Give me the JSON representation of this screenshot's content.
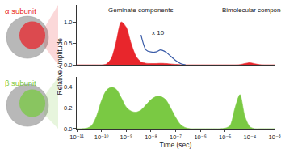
{
  "chart_data": [
    {
      "type": "area",
      "title": "α subunit",
      "log": "x",
      "tick_labels": "y",
      "ylabel": "Relative Amplitude",
      "x": [
        1e-11,
        1.585e-11,
        2.512e-11,
        3.981e-11,
        6.31e-11,
        1e-10,
        1.585e-10,
        2.512e-10,
        3.981e-10,
        6.31e-10,
        1e-09,
        1.585e-09,
        2.512e-09,
        3.981e-09,
        6.31e-09,
        1e-08,
        1.585e-08,
        2.512e-08,
        3.981e-08,
        6.31e-08,
        1e-07,
        1.585e-07,
        2.512e-07,
        3.981e-07,
        6.31e-07,
        1e-06,
        1.585e-06,
        2.512e-06,
        3.981e-06,
        6.31e-06,
        1e-05,
        1.585e-05,
        2.512e-05,
        3.981e-05,
        6.31e-05,
        0.0001,
        0.0001585,
        0.0002512,
        0.0003981,
        0.000631,
        0.001
      ],
      "xlim": [
        1e-11,
        0.001
      ],
      "ylim": [
        0,
        1.4
      ],
      "yticks": [
        {
          "value": 0,
          "label": "0.0"
        },
        {
          "value": 0.5,
          "label": "0.5"
        },
        {
          "value": 1,
          "label": "1.0"
        }
      ],
      "series": [
        {
          "color": "#e8262c",
          "values": [
            0,
            0,
            0,
            0,
            0,
            0,
            0.02,
            0.15,
            0.55,
            1.0,
            0.88,
            0.5,
            0.2,
            0.07,
            0.035,
            0.03,
            0.03,
            0.035,
            0.03,
            0.02,
            0.01,
            0.003,
            0,
            0,
            0,
            0,
            0,
            0,
            0,
            0,
            0,
            0,
            0,
            0.005,
            0.03,
            0.05,
            0.025,
            0.005,
            0,
            0,
            0
          ]
        },
        {
          "type": "line",
          "color": "#3a5ca8",
          "values": [
            null,
            null,
            null,
            null,
            null,
            null,
            null,
            null,
            null,
            null,
            null,
            null,
            null,
            0.7,
            0.35,
            0.3,
            0.3,
            0.35,
            0.3,
            0.2,
            0.1,
            0.03,
            0,
            null,
            null,
            null,
            null,
            null,
            null,
            null,
            null,
            null,
            null,
            null,
            null,
            null,
            null,
            null,
            null,
            null,
            null
          ]
        }
      ],
      "annotations": [
        {
          "text": "Geminate components",
          "x": 4e-09,
          "y": 1.28
        },
        {
          "text": "x 10",
          "x": 2e-08,
          "y": 0.75
        },
        {
          "text": "Bimolecular components",
          "x": 0.0002,
          "y": 1.28
        }
      ]
    },
    {
      "type": "area",
      "title": "β subunit",
      "log": "x",
      "xlabel": "Time (sec)",
      "x": [
        1e-11,
        1.585e-11,
        2.512e-11,
        3.981e-11,
        6.31e-11,
        1e-10,
        1.585e-10,
        2.512e-10,
        3.981e-10,
        6.31e-10,
        1e-09,
        1.585e-09,
        2.512e-09,
        3.981e-09,
        6.31e-09,
        1e-08,
        1.585e-08,
        2.512e-08,
        3.981e-08,
        6.31e-08,
        1e-07,
        1.585e-07,
        2.512e-07,
        3.981e-07,
        6.31e-07,
        1e-06,
        1.585e-06,
        2.512e-06,
        3.981e-06,
        6.31e-06,
        1e-05,
        1.585e-05,
        2.512e-05,
        3.981e-05,
        6.31e-05,
        0.0001,
        0.0001585,
        0.0002512,
        0.0003981,
        0.000631,
        0.001
      ],
      "xlim": [
        1e-11,
        0.001
      ],
      "xticks": [
        {
          "value": 1e-11,
          "label": "10⁻¹¹"
        },
        {
          "value": 1e-10,
          "label": "10⁻¹⁰"
        },
        {
          "value": 1e-09,
          "label": "10⁻⁹"
        },
        {
          "value": 1e-08,
          "label": "10⁻⁸"
        },
        {
          "value": 1e-07,
          "label": "10⁻⁷"
        },
        {
          "value": 1e-06,
          "label": "10⁻⁶"
        },
        {
          "value": 1e-05,
          "label": "10⁻⁵"
        },
        {
          "value": 0.0001,
          "label": "10⁻⁴"
        },
        {
          "value": 0.001,
          "label": "10⁻³"
        }
      ],
      "ylim": [
        0,
        0.5
      ],
      "yticks": [
        {
          "value": 0,
          "label": "0.0"
        },
        {
          "value": 0.2,
          "label": "0.2"
        },
        {
          "value": 0.4,
          "label": "0.4"
        }
      ],
      "color": "#7ac943",
      "values": [
        0,
        0,
        0.005,
        0.03,
        0.12,
        0.27,
        0.37,
        0.4,
        0.38,
        0.3,
        0.21,
        0.17,
        0.16,
        0.18,
        0.23,
        0.28,
        0.31,
        0.31,
        0.28,
        0.2,
        0.11,
        0.04,
        0.01,
        0,
        0,
        0,
        0,
        0,
        0,
        0,
        0.005,
        0.03,
        0.2,
        0.33,
        0.12,
        0.02,
        0,
        0,
        0,
        0,
        0
      ]
    }
  ]
}
